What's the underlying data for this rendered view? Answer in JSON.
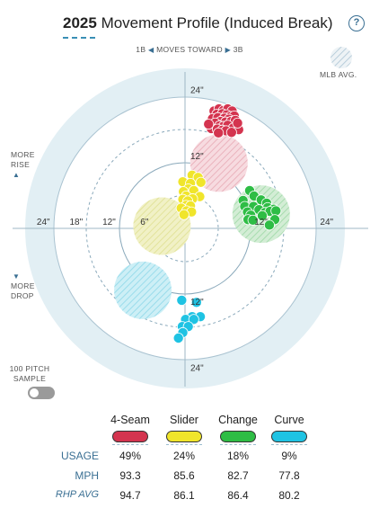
{
  "header": {
    "year": "2025",
    "title": "Movement Profile (Induced Break)",
    "help_label": "?"
  },
  "direction": {
    "left": "1B",
    "center": "MOVES TOWARD",
    "right": "3B"
  },
  "legend": {
    "mlb_avg": "MLB AVG."
  },
  "side_labels": {
    "rise_line1": "MORE",
    "rise_line2": "RISE",
    "drop_line1": "MORE",
    "drop_line2": "DROP",
    "sample_line1": "100 PITCH",
    "sample_line2": "SAMPLE"
  },
  "colors": {
    "four_seam": "#d4344f",
    "slider": "#f0e52b",
    "change": "#2ebd45",
    "curve": "#1fc3e3",
    "field_outer": "#e2eff4",
    "accent": "#3a6f93"
  },
  "chart_data": {
    "type": "scatter",
    "x_unit": "inches horizontal break",
    "y_unit": "inches induced vertical break",
    "ring_labels": [
      "24\"",
      "18\"",
      "12\"",
      "6\"",
      "12\"",
      "24\"",
      "24\"",
      "12\"",
      "12\"",
      "24\""
    ],
    "x_tick_labels": [
      "24\"",
      "18\"",
      "12\"",
      "6\"",
      "12\"",
      "24\""
    ],
    "y_tick_labels": [
      "24\"",
      "12\"",
      "12\"",
      "24\""
    ],
    "series": [
      {
        "name": "4-Seam",
        "color": "#d4344f",
        "avg_center": [
          6.2,
          11.9
        ],
        "points": [
          [
            5.3,
            21.4
          ],
          [
            6.2,
            21.8
          ],
          [
            7.0,
            21.5
          ],
          [
            7.8,
            21.8
          ],
          [
            8.6,
            21.4
          ],
          [
            5.8,
            20.8
          ],
          [
            6.8,
            20.9
          ],
          [
            7.6,
            20.7
          ],
          [
            8.3,
            20.4
          ],
          [
            9.0,
            20.5
          ],
          [
            5.0,
            20.0
          ],
          [
            6.0,
            20.2
          ],
          [
            7.2,
            20.1
          ],
          [
            8.0,
            19.9
          ],
          [
            6.5,
            19.5
          ],
          [
            7.4,
            19.4
          ],
          [
            8.4,
            19.5
          ],
          [
            9.2,
            19.7
          ],
          [
            5.5,
            19.2
          ],
          [
            6.3,
            18.7
          ],
          [
            7.0,
            18.6
          ],
          [
            7.8,
            18.8
          ],
          [
            4.8,
            18.2
          ],
          [
            5.9,
            18.1
          ],
          [
            6.8,
            17.9
          ],
          [
            8.8,
            18.3
          ],
          [
            9.8,
            18.0
          ],
          [
            7.5,
            17.8
          ],
          [
            8.5,
            17.5
          ],
          [
            4.3,
            19.0
          ],
          [
            9.6,
            19.2
          ],
          [
            6.1,
            17.4
          ]
        ]
      },
      {
        "name": "Slider",
        "color": "#f0e52b",
        "avg_center": [
          -4.2,
          0.4
        ],
        "points": [
          [
            1.3,
            9.7
          ],
          [
            2.4,
            9.3
          ],
          [
            -0.4,
            8.5
          ],
          [
            1.0,
            8.2
          ],
          [
            2.9,
            8.4
          ],
          [
            0.6,
            7.2
          ],
          [
            1.6,
            6.9
          ],
          [
            -0.3,
            6.7
          ],
          [
            2.7,
            5.8
          ],
          [
            0.2,
            5.9
          ],
          [
            1.4,
            5.4
          ],
          [
            -0.4,
            5.3
          ],
          [
            0.5,
            5.0
          ],
          [
            0.2,
            4.2
          ],
          [
            1.0,
            4.1
          ],
          [
            -0.7,
            3.7
          ],
          [
            0.3,
            3.2
          ],
          [
            1.2,
            3.0
          ],
          [
            -0.2,
            2.5
          ]
        ]
      },
      {
        "name": "Change",
        "color": "#2ebd45",
        "avg_center": [
          13.9,
          2.6
        ],
        "points": [
          [
            11.8,
            6.9
          ],
          [
            12.6,
            5.9
          ],
          [
            10.6,
            5.1
          ],
          [
            13.9,
            5.2
          ],
          [
            14.9,
            4.6
          ],
          [
            10.9,
            4.0
          ],
          [
            12.5,
            4.0
          ],
          [
            15.1,
            3.8
          ],
          [
            11.4,
            3.0
          ],
          [
            13.5,
            3.4
          ],
          [
            16.2,
            3.5
          ],
          [
            14.6,
            2.9
          ],
          [
            15.5,
            3.1
          ],
          [
            16.6,
            3.2
          ],
          [
            12.0,
            2.4
          ],
          [
            14.1,
            2.3
          ],
          [
            11.5,
            1.6
          ],
          [
            12.4,
            1.5
          ],
          [
            16.4,
            1.6
          ],
          [
            15.4,
            0.6
          ]
        ]
      },
      {
        "name": "Curve",
        "color": "#1fc3e3",
        "avg_center": [
          -7.7,
          -11.3
        ],
        "points": [
          [
            -0.6,
            -13.1
          ],
          [
            2.1,
            -13.5
          ],
          [
            1.3,
            -16.1
          ],
          [
            2.8,
            -16.1
          ],
          [
            0.1,
            -16.6
          ],
          [
            1.6,
            -16.6
          ],
          [
            -0.5,
            -17.9
          ],
          [
            0.6,
            -17.9
          ],
          [
            -0.4,
            -19.0
          ],
          [
            -1.2,
            -20.0
          ]
        ]
      }
    ]
  },
  "table": {
    "pitches": [
      {
        "name": "4-Seam",
        "usage": "49%",
        "mph": "93.3",
        "rhp_avg": "94.7",
        "color": "#d4344f"
      },
      {
        "name": "Slider",
        "usage": "24%",
        "mph": "85.6",
        "rhp_avg": "86.1",
        "color": "#f0e52b"
      },
      {
        "name": "Change",
        "usage": "18%",
        "mph": "82.7",
        "rhp_avg": "86.4",
        "color": "#2ebd45"
      },
      {
        "name": "Curve",
        "usage": "9%",
        "mph": "77.8",
        "rhp_avg": "80.2",
        "color": "#1fc3e3"
      }
    ],
    "row_labels": {
      "usage": "USAGE",
      "mph": "MPH",
      "rhp_avg": "RHP AVG"
    }
  }
}
